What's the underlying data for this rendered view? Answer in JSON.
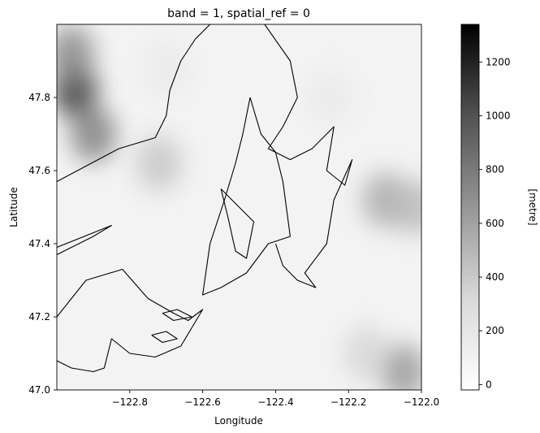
{
  "chart_data": {
    "type": "heatmap",
    "title": "band = 1, spatial_ref = 0",
    "xlabel": "Longitude",
    "ylabel": "Latitude",
    "xlim": [
      -123.0,
      -122.0
    ],
    "ylim": [
      47.0,
      48.0
    ],
    "xticks": [
      -122.8,
      -122.6,
      -122.4,
      -122.2,
      -122.0
    ],
    "xtick_labels": [
      "−122.8",
      "−122.6",
      "−122.4",
      "−122.2",
      "−122.0"
    ],
    "yticks": [
      47.0,
      47.2,
      47.4,
      47.6,
      47.8
    ],
    "ytick_labels": [
      "47.0",
      "47.2",
      "47.4",
      "47.6",
      "47.8"
    ],
    "colorbar": {
      "label": "[metre]",
      "min": -20,
      "max": 1340,
      "ticks": [
        0,
        200,
        400,
        600,
        800,
        1000,
        1200
      ],
      "tick_labels": [
        "0",
        "200",
        "400",
        "600",
        "800",
        "1000",
        "1200"
      ],
      "colormap": "Greys",
      "low_color": "#ffffff",
      "high_color": "#000000"
    },
    "elevation_features": [
      {
        "lon": -122.95,
        "lat": 47.82,
        "value": 1000
      },
      {
        "lon": -122.9,
        "lat": 47.7,
        "value": 650
      },
      {
        "lon": -122.96,
        "lat": 47.92,
        "value": 600
      },
      {
        "lon": -122.72,
        "lat": 47.62,
        "value": 280
      },
      {
        "lon": -122.1,
        "lat": 47.52,
        "value": 420
      },
      {
        "lon": -122.02,
        "lat": 47.5,
        "value": 350
      },
      {
        "lon": -122.05,
        "lat": 47.05,
        "value": 520
      },
      {
        "lon": -122.15,
        "lat": 47.1,
        "value": 200
      },
      {
        "lon": -122.7,
        "lat": 47.88,
        "value": 90
      },
      {
        "lon": -122.25,
        "lat": 47.8,
        "value": 90
      }
    ],
    "coastline": [
      [
        [
          -123.0,
          47.57
        ],
        [
          -122.83,
          47.66
        ],
        [
          -122.73,
          47.69
        ],
        [
          -122.7,
          47.75
        ],
        [
          -122.69,
          47.82
        ],
        [
          -122.66,
          47.9
        ],
        [
          -122.62,
          47.96
        ],
        [
          -122.6,
          47.98
        ],
        [
          -122.58,
          48.0
        ]
      ],
      [
        [
          -123.0,
          47.37
        ],
        [
          -122.9,
          47.42
        ],
        [
          -122.85,
          47.45
        ],
        [
          -123.0,
          47.39
        ]
      ],
      [
        [
          -123.0,
          47.2
        ],
        [
          -122.92,
          47.3
        ],
        [
          -122.82,
          47.33
        ],
        [
          -122.75,
          47.25
        ],
        [
          -122.68,
          47.21
        ],
        [
          -122.64,
          47.19
        ],
        [
          -122.6,
          47.22
        ],
        [
          -122.66,
          47.12
        ],
        [
          -122.73,
          47.09
        ],
        [
          -122.8,
          47.1
        ],
        [
          -122.85,
          47.14
        ],
        [
          -122.87,
          47.06
        ],
        [
          -122.9,
          47.05
        ],
        [
          -122.96,
          47.06
        ],
        [
          -123.0,
          47.08
        ]
      ],
      [
        [
          -122.47,
          47.8
        ],
        [
          -122.44,
          47.7
        ],
        [
          -122.4,
          47.65
        ],
        [
          -122.38,
          47.57
        ],
        [
          -122.36,
          47.42
        ],
        [
          -122.42,
          47.4
        ],
        [
          -122.48,
          47.32
        ],
        [
          -122.55,
          47.28
        ],
        [
          -122.6,
          47.26
        ],
        [
          -122.58,
          47.4
        ],
        [
          -122.54,
          47.52
        ],
        [
          -122.51,
          47.62
        ],
        [
          -122.49,
          47.7
        ],
        [
          -122.47,
          47.8
        ]
      ],
      [
        [
          -122.43,
          48.0
        ],
        [
          -122.36,
          47.9
        ],
        [
          -122.34,
          47.8
        ],
        [
          -122.38,
          47.72
        ],
        [
          -122.42,
          47.66
        ],
        [
          -122.36,
          47.63
        ],
        [
          -122.3,
          47.66
        ],
        [
          -122.24,
          47.72
        ],
        [
          -122.26,
          47.6
        ],
        [
          -122.21,
          47.56
        ],
        [
          -122.19,
          47.63
        ],
        [
          -122.24,
          47.52
        ],
        [
          -122.26,
          47.4
        ],
        [
          -122.32,
          47.32
        ],
        [
          -122.29,
          47.28
        ],
        [
          -122.34,
          47.3
        ],
        [
          -122.38,
          47.34
        ],
        [
          -122.4,
          47.4
        ]
      ],
      [
        [
          -122.55,
          47.55
        ],
        [
          -122.5,
          47.5
        ],
        [
          -122.46,
          47.46
        ],
        [
          -122.48,
          47.36
        ],
        [
          -122.51,
          47.38
        ],
        [
          -122.53,
          47.47
        ],
        [
          -122.55,
          47.55
        ]
      ],
      [
        [
          -122.71,
          47.21
        ],
        [
          -122.68,
          47.19
        ],
        [
          -122.63,
          47.2
        ],
        [
          -122.67,
          47.22
        ],
        [
          -122.71,
          47.21
        ]
      ],
      [
        [
          -122.74,
          47.15
        ],
        [
          -122.71,
          47.13
        ],
        [
          -122.67,
          47.14
        ],
        [
          -122.7,
          47.16
        ],
        [
          -122.74,
          47.15
        ]
      ]
    ]
  }
}
